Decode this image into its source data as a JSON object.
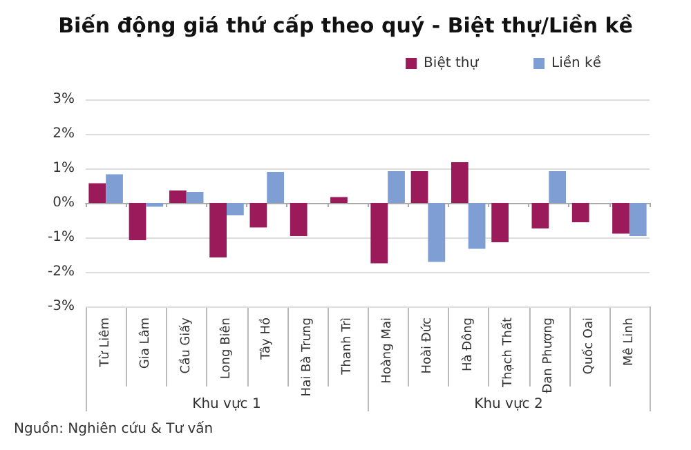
{
  "chart_data": {
    "type": "bar",
    "title": "Biến động giá thứ cấp theo quý - Biệt thự/Liền kề",
    "categories": [
      "Từ Liêm",
      "Gia Lâm",
      "Cầu Giấy",
      "Long Biên",
      "Tây Hồ",
      "Hai Bà Trưng",
      "Thanh Trì",
      "Hoàng Mai",
      "Hoài Đức",
      "Hà Đông",
      "Thạch Thất",
      "Đan Phượng",
      "Quốc Oai",
      "Mê Linh"
    ],
    "series": [
      {
        "name": "Biệt thự",
        "color": "#9b1b5a",
        "values": [
          0.57,
          -1.08,
          0.36,
          -1.58,
          -0.71,
          -0.96,
          0.17,
          -1.75,
          0.92,
          1.18,
          -1.14,
          -0.74,
          -0.56,
          -0.89
        ]
      },
      {
        "name": "Liền kề",
        "color": "#7f9fd4",
        "values": [
          0.83,
          -0.11,
          0.32,
          -0.36,
          0.9,
          null,
          null,
          0.92,
          -1.71,
          -1.33,
          null,
          0.92,
          null,
          -0.96
        ]
      }
    ],
    "ylim": [
      -3,
      3
    ],
    "yticks": [
      {
        "value": -3,
        "label": "-3%"
      },
      {
        "value": -2,
        "label": "-2%"
      },
      {
        "value": -1,
        "label": "-1%"
      },
      {
        "value": 0,
        "label": "0%"
      },
      {
        "value": 1,
        "label": "1%"
      },
      {
        "value": 2,
        "label": "2%"
      },
      {
        "value": 3,
        "label": "3%"
      }
    ],
    "grid": "y",
    "legend": "top right",
    "annotations": [
      "Khu vực 1",
      "Khu vực 2",
      "Nguồn: Nghiên cứu & Tư vấn"
    ]
  }
}
